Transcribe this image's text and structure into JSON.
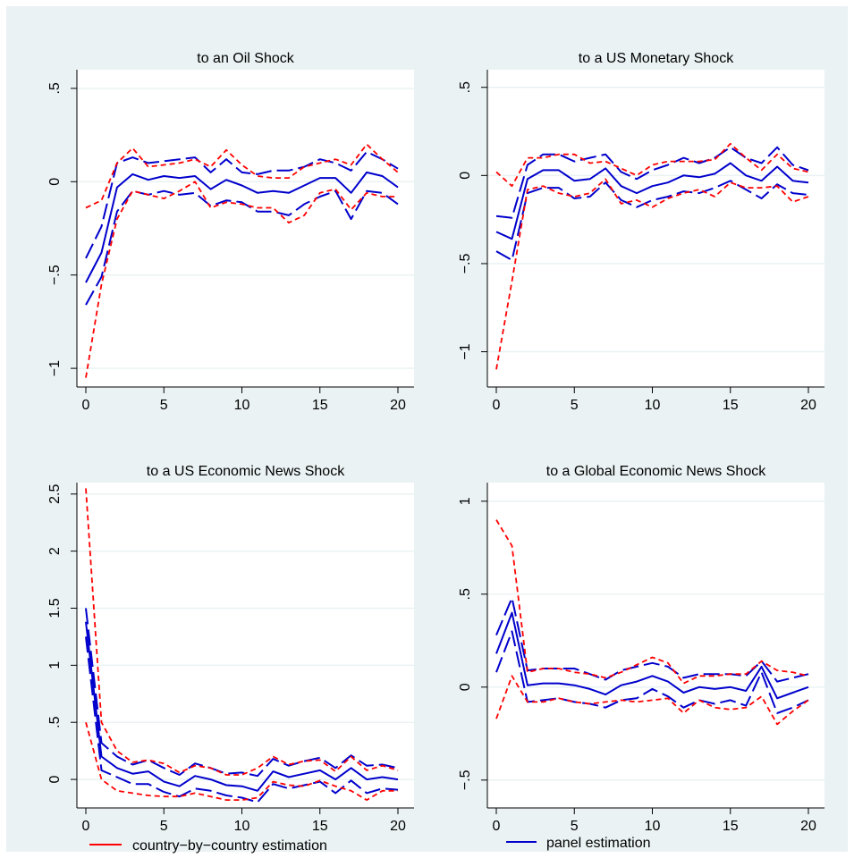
{
  "figure": {
    "background": "#eaf2f3",
    "plot_background": "#ffffff",
    "grid_color": "#eaf2f3",
    "country_color": "#ff0000",
    "panel_color": "#0000cc"
  },
  "legend": [
    {
      "label": "country−by−country estimation",
      "color": "#ff0000"
    },
    {
      "label": "panel estimation",
      "color": "#0000cc"
    }
  ],
  "chart_data": [
    {
      "type": "line",
      "title": "to an Oil Shock",
      "xlim": [
        0,
        20
      ],
      "ylim": [
        -1.1,
        0.6
      ],
      "xticks": [
        0,
        5,
        10,
        15,
        20
      ],
      "yticks": [
        -1,
        -0.5,
        0,
        0.5
      ],
      "ytick_labels": [
        "−1",
        "−.5",
        "0",
        ".5"
      ],
      "grid": true,
      "series": [
        {
          "role": "panel-point",
          "values": [
            -0.54,
            -0.38,
            -0.03,
            0.04,
            0.01,
            0.03,
            0.02,
            0.03,
            -0.04,
            0.01,
            -0.02,
            -0.06,
            -0.05,
            -0.06,
            -0.02,
            0.02,
            0.02,
            -0.06,
            0.05,
            0.03,
            -0.03
          ]
        },
        {
          "role": "panel-upper",
          "values": [
            -0.41,
            -0.24,
            0.1,
            0.13,
            0.1,
            0.11,
            0.12,
            0.13,
            0.05,
            0.12,
            0.05,
            0.04,
            0.06,
            0.06,
            0.08,
            0.12,
            0.1,
            0.06,
            0.16,
            0.12,
            0.07
          ]
        },
        {
          "role": "panel-lower",
          "values": [
            -0.66,
            -0.51,
            -0.16,
            -0.05,
            -0.07,
            -0.05,
            -0.07,
            -0.06,
            -0.13,
            -0.1,
            -0.11,
            -0.16,
            -0.16,
            -0.18,
            -0.12,
            -0.08,
            -0.05,
            -0.2,
            -0.05,
            -0.06,
            -0.12
          ]
        },
        {
          "role": "country-upper",
          "values": [
            -0.14,
            -0.1,
            0.1,
            0.18,
            0.08,
            0.09,
            0.1,
            0.12,
            0.08,
            0.17,
            0.09,
            0.03,
            0.02,
            0.02,
            0.08,
            0.1,
            0.12,
            0.09,
            0.2,
            0.12,
            0.05
          ]
        },
        {
          "role": "country-lower",
          "values": [
            -1.05,
            -0.55,
            -0.2,
            -0.05,
            -0.07,
            -0.09,
            -0.05,
            0.0,
            -0.14,
            -0.11,
            -0.12,
            -0.14,
            -0.14,
            -0.22,
            -0.18,
            -0.06,
            -0.04,
            -0.15,
            -0.06,
            -0.08,
            -0.08
          ]
        }
      ]
    },
    {
      "type": "line",
      "title": "to a US Monetary Shock",
      "xlim": [
        0,
        20
      ],
      "ylim": [
        -1.2,
        0.6
      ],
      "xticks": [
        0,
        5,
        10,
        15,
        20
      ],
      "yticks": [
        -1,
        -0.5,
        0,
        0.5
      ],
      "ytick_labels": [
        "−1",
        "−.5",
        "0",
        ".5"
      ],
      "grid": true,
      "series": [
        {
          "role": "panel-point",
          "values": [
            -0.32,
            -0.36,
            -0.02,
            0.03,
            0.03,
            -0.03,
            -0.02,
            0.04,
            -0.06,
            -0.1,
            -0.06,
            -0.04,
            0.0,
            -0.01,
            0.01,
            0.07,
            0.0,
            -0.03,
            0.05,
            -0.03,
            -0.04
          ]
        },
        {
          "role": "panel-upper",
          "values": [
            -0.23,
            -0.24,
            0.06,
            0.12,
            0.12,
            0.08,
            0.1,
            0.12,
            0.02,
            -0.02,
            0.03,
            0.06,
            0.1,
            0.07,
            0.1,
            0.16,
            0.1,
            0.07,
            0.16,
            0.06,
            0.03
          ]
        },
        {
          "role": "panel-lower",
          "values": [
            -0.43,
            -0.48,
            -0.1,
            -0.07,
            -0.07,
            -0.13,
            -0.12,
            -0.04,
            -0.14,
            -0.18,
            -0.14,
            -0.12,
            -0.09,
            -0.1,
            -0.07,
            -0.03,
            -0.08,
            -0.13,
            -0.05,
            -0.1,
            -0.11
          ]
        },
        {
          "role": "country-upper",
          "values": [
            0.02,
            -0.06,
            0.1,
            0.1,
            0.12,
            0.12,
            0.07,
            0.08,
            0.04,
            0.0,
            0.06,
            0.08,
            0.08,
            0.08,
            0.09,
            0.18,
            0.1,
            0.03,
            0.12,
            0.04,
            0.02
          ]
        },
        {
          "role": "country-lower",
          "values": [
            -1.1,
            -0.6,
            -0.08,
            -0.06,
            -0.1,
            -0.12,
            -0.1,
            -0.02,
            -0.16,
            -0.14,
            -0.18,
            -0.13,
            -0.1,
            -0.08,
            -0.12,
            -0.04,
            -0.07,
            -0.07,
            -0.06,
            -0.15,
            -0.12
          ]
        }
      ]
    },
    {
      "type": "line",
      "title": "to a US Economic News Shock",
      "xlim": [
        0,
        20
      ],
      "ylim": [
        -0.25,
        2.6
      ],
      "xticks": [
        0,
        5,
        10,
        15,
        20
      ],
      "yticks": [
        0,
        0.5,
        1,
        1.5,
        2,
        2.5
      ],
      "ytick_labels": [
        "0",
        ".5",
        "1",
        "1.5",
        "2",
        "2.5"
      ],
      "grid": true,
      "series": [
        {
          "role": "panel-point",
          "values": [
            1.38,
            0.2,
            0.1,
            0.05,
            0.07,
            -0.02,
            -0.06,
            0.03,
            0.0,
            -0.05,
            -0.06,
            -0.1,
            0.07,
            0.02,
            0.05,
            0.08,
            0.0,
            0.1,
            0.0,
            0.02,
            0.0
          ]
        },
        {
          "role": "panel-upper",
          "values": [
            1.5,
            0.32,
            0.2,
            0.13,
            0.17,
            0.1,
            0.04,
            0.14,
            0.1,
            0.05,
            0.06,
            0.03,
            0.18,
            0.12,
            0.16,
            0.19,
            0.1,
            0.21,
            0.12,
            0.13,
            0.1
          ]
        },
        {
          "role": "panel-lower",
          "values": [
            1.25,
            0.08,
            0.02,
            -0.04,
            -0.04,
            -0.11,
            -0.15,
            -0.08,
            -0.1,
            -0.14,
            -0.16,
            -0.2,
            -0.04,
            -0.08,
            -0.05,
            -0.02,
            -0.12,
            -0.01,
            -0.12,
            -0.08,
            -0.09
          ]
        },
        {
          "role": "country-upper",
          "values": [
            2.55,
            0.5,
            0.25,
            0.15,
            0.17,
            0.14,
            0.06,
            0.12,
            0.1,
            0.04,
            0.04,
            0.1,
            0.2,
            0.13,
            0.16,
            0.17,
            0.07,
            0.2,
            0.08,
            0.12,
            0.08
          ]
        },
        {
          "role": "country-lower",
          "values": [
            0.5,
            0.0,
            -0.1,
            -0.12,
            -0.14,
            -0.15,
            -0.15,
            -0.12,
            -0.15,
            -0.18,
            -0.18,
            -0.16,
            -0.02,
            -0.05,
            -0.06,
            -0.01,
            -0.06,
            -0.1,
            -0.18,
            -0.1,
            -0.1
          ]
        }
      ]
    },
    {
      "type": "line",
      "title": "to a Global Economic News Shock",
      "xlim": [
        0,
        20
      ],
      "ylim": [
        -0.65,
        1.1
      ],
      "xticks": [
        0,
        5,
        10,
        15,
        20
      ],
      "yticks": [
        -0.5,
        0,
        0.5,
        1
      ],
      "ytick_labels": [
        "−.5",
        "0",
        ".5",
        "1"
      ],
      "grid": true,
      "series": [
        {
          "role": "panel-point",
          "values": [
            0.18,
            0.4,
            0.01,
            0.02,
            0.02,
            0.01,
            -0.01,
            -0.04,
            0.01,
            0.03,
            0.06,
            0.03,
            -0.03,
            0.0,
            -0.01,
            0.0,
            -0.02,
            0.11,
            -0.06,
            -0.03,
            0.0
          ]
        },
        {
          "role": "panel-upper",
          "values": [
            0.28,
            0.48,
            0.09,
            0.1,
            0.1,
            0.1,
            0.07,
            0.04,
            0.09,
            0.11,
            0.13,
            0.11,
            0.05,
            0.07,
            0.07,
            0.07,
            0.06,
            0.14,
            0.03,
            0.05,
            0.07
          ]
        },
        {
          "role": "panel-lower",
          "values": [
            0.08,
            0.3,
            -0.08,
            -0.07,
            -0.06,
            -0.08,
            -0.09,
            -0.11,
            -0.07,
            -0.06,
            -0.01,
            -0.05,
            -0.11,
            -0.07,
            -0.09,
            -0.07,
            -0.1,
            0.08,
            -0.14,
            -0.11,
            -0.07
          ]
        },
        {
          "role": "country-upper",
          "values": [
            0.9,
            0.76,
            0.08,
            0.1,
            0.1,
            0.08,
            0.07,
            0.05,
            0.08,
            0.12,
            0.16,
            0.13,
            0.02,
            0.06,
            0.06,
            0.07,
            0.07,
            0.14,
            0.09,
            0.08,
            0.06
          ]
        },
        {
          "role": "country-lower",
          "values": [
            -0.17,
            0.06,
            -0.08,
            -0.08,
            -0.06,
            -0.08,
            -0.09,
            -0.08,
            -0.07,
            -0.08,
            -0.07,
            -0.06,
            -0.14,
            -0.07,
            -0.11,
            -0.12,
            -0.11,
            -0.05,
            -0.2,
            -0.13,
            -0.07
          ]
        }
      ]
    }
  ]
}
